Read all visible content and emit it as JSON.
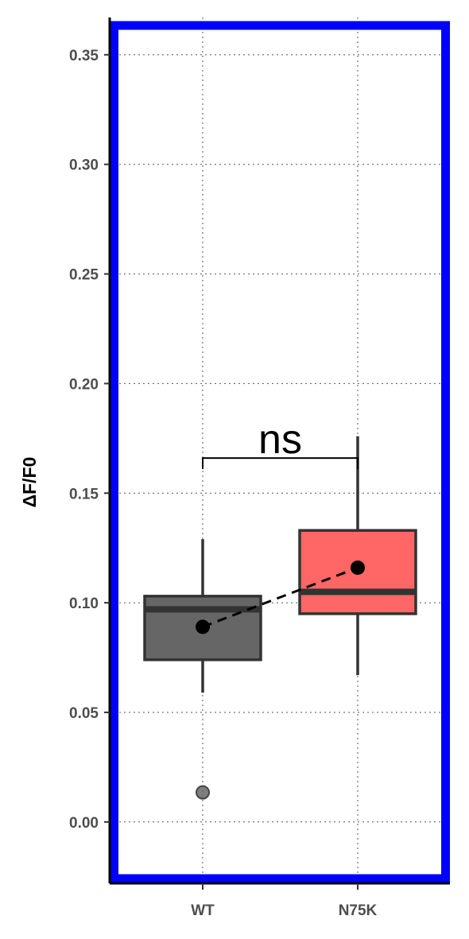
{
  "chart_data": {
    "type": "box",
    "ylabel": "ΔF/F0",
    "xlabel": "",
    "ylim": [
      -0.028,
      0.367
    ],
    "y_ticks": [
      0.0,
      0.05,
      0.1,
      0.15,
      0.2,
      0.25,
      0.3,
      0.35
    ],
    "y_tick_labels": [
      "0.00",
      "0.05",
      "0.10",
      "0.15",
      "0.20",
      "0.25",
      "0.30",
      "0.35"
    ],
    "grid": true,
    "categories": [
      "WT",
      "N75K"
    ],
    "groups": [
      {
        "name": "WT",
        "color": "#666666",
        "whisker_low": 0.059,
        "q1": 0.074,
        "median": 0.097,
        "q3": 0.103,
        "whisker_high": 0.129,
        "mean": 0.089,
        "outliers": [
          0.0135
        ]
      },
      {
        "name": "N75K",
        "color": "#ff6666",
        "whisker_low": 0.067,
        "q1": 0.095,
        "median": 0.105,
        "q3": 0.133,
        "whisker_high": 0.176,
        "mean": 0.116,
        "outliers": []
      }
    ],
    "mean_line": {
      "style": "dashed",
      "color": "#000000"
    },
    "significance": {
      "label": "ns",
      "y": 0.166,
      "drop_to": 0.161
    },
    "border_color": "#0000ff"
  }
}
